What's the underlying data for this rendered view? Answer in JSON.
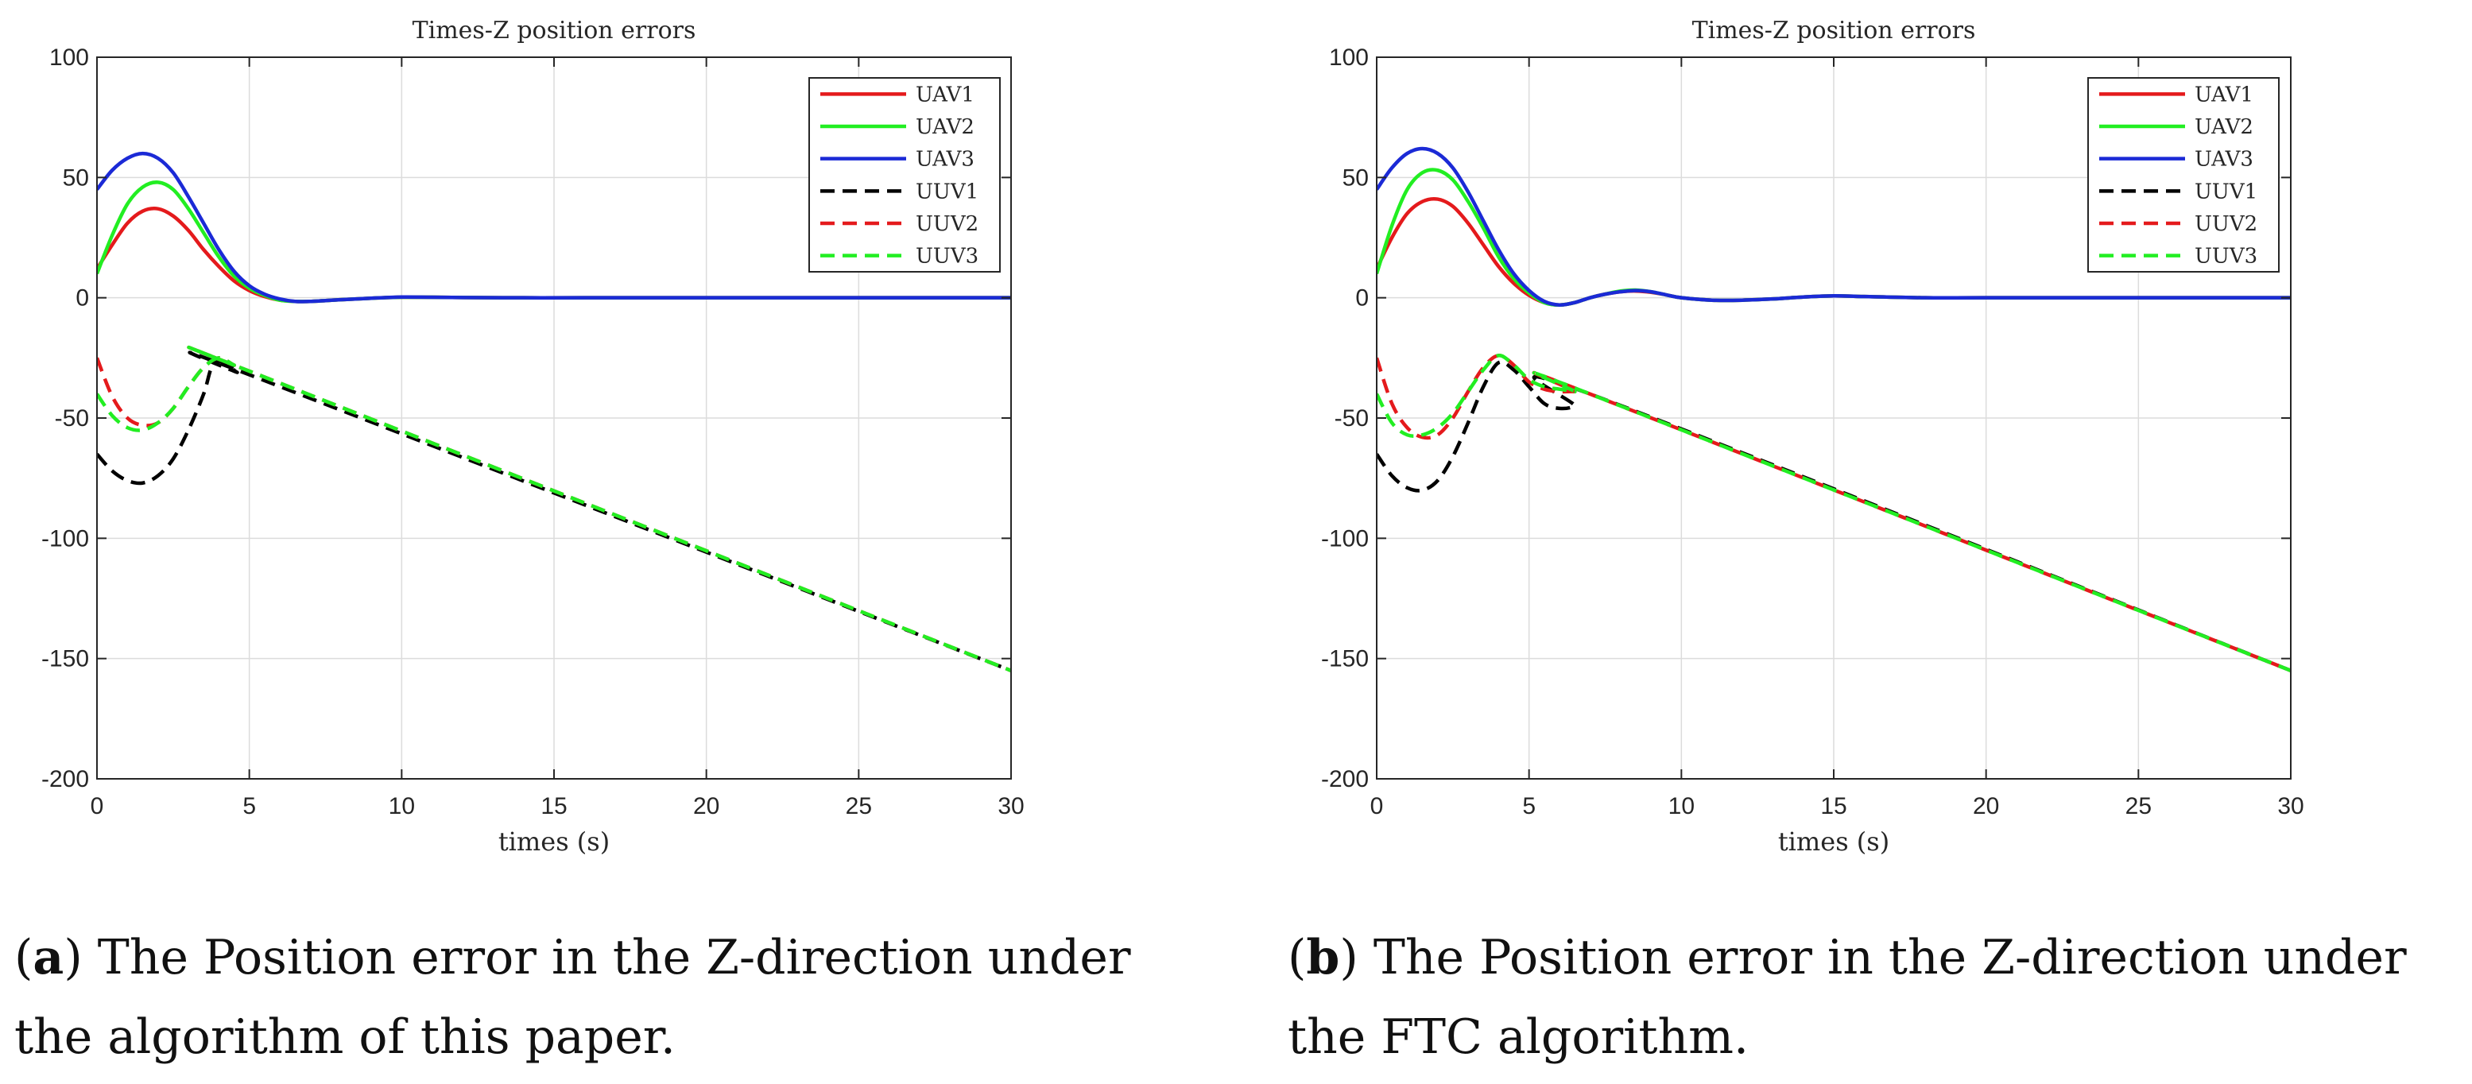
{
  "chart_data": [
    {
      "type": "line",
      "title": "Times-Z position errors",
      "xlabel": "times (s)",
      "ylabel": "",
      "xlim": [
        0,
        30
      ],
      "ylim": [
        -200,
        100
      ],
      "xticks": [
        0,
        5,
        10,
        15,
        20,
        25,
        30
      ],
      "yticks": [
        100,
        50,
        0,
        -50,
        -100,
        -150,
        -200
      ],
      "grid": true,
      "legend_position": "top-right",
      "caption": {
        "letter": "a",
        "line1": ") The Position error in the Z-direction under",
        "line2": "the algorithm of this paper."
      },
      "series": [
        {
          "name": "UAV1",
          "color": "#e41a1c",
          "style": "solid",
          "x": [
            0,
            0.5,
            1,
            1.5,
            2,
            2.5,
            3,
            3.5,
            4,
            4.5,
            5,
            5.5,
            6,
            6.5,
            7,
            8,
            9,
            10,
            11,
            12,
            14,
            16,
            20,
            25,
            30
          ],
          "y": [
            12,
            22,
            31,
            36,
            37,
            34,
            28,
            20,
            13,
            7,
            3,
            0.5,
            -1,
            -1.5,
            -1.5,
            -0.8,
            -0.2,
            0.2,
            0.2,
            0.1,
            0,
            0,
            0,
            0,
            0
          ]
        },
        {
          "name": "UAV2",
          "color": "#22ee22",
          "style": "solid",
          "x": [
            0,
            0.5,
            1,
            1.5,
            2,
            2.5,
            3,
            3.5,
            4,
            4.5,
            5,
            5.5,
            6,
            6.5,
            7,
            8,
            9,
            10,
            11,
            12,
            14,
            16,
            20,
            25,
            30
          ],
          "y": [
            10,
            26,
            39,
            46,
            48,
            45,
            37,
            27,
            17,
            9,
            4,
            1,
            -1,
            -1.5,
            -1.5,
            -0.8,
            -0.2,
            0.2,
            0.2,
            0.1,
            0,
            0,
            0,
            0,
            0
          ]
        },
        {
          "name": "UAV3",
          "color": "#1b2ad6",
          "style": "solid",
          "x": [
            0,
            0.5,
            1,
            1.5,
            2,
            2.5,
            3,
            3.5,
            4,
            4.5,
            5,
            5.5,
            6,
            6.5,
            7,
            8,
            9,
            10,
            11,
            12,
            14,
            16,
            20,
            25,
            30
          ],
          "y": [
            45,
            53,
            58,
            60,
            58,
            52,
            42,
            31,
            20,
            11,
            5,
            1.5,
            -0.5,
            -1.5,
            -1.5,
            -0.8,
            -0.2,
            0.3,
            0.2,
            0.1,
            0,
            0,
            0,
            0,
            0
          ]
        },
        {
          "name": "UUV1",
          "color": "#000000",
          "style": "dashed",
          "x": [
            0,
            0.5,
            1,
            1.5,
            2,
            2.5,
            3,
            3.5,
            3.8,
            4.2,
            4.6,
            5,
            30
          ],
          "y": [
            -65,
            -72,
            -76,
            -77,
            -74,
            -67,
            -55,
            -40,
            -28,
            -27,
            -31,
            -32,
            -155
          ]
        },
        {
          "name": "UUV2",
          "color": "#e41a1c",
          "style": "dashed",
          "x": [
            0,
            0.5,
            1,
            1.5,
            2,
            2.5,
            3,
            3.5,
            4,
            4.5,
            5,
            30
          ],
          "y": [
            -25,
            -41,
            -50,
            -53,
            -52,
            -46,
            -37,
            -29,
            -25,
            -28,
            -30.5,
            -155
          ]
        },
        {
          "name": "UUV3",
          "color": "#22ee22",
          "style": "dashed",
          "x": [
            0,
            0.5,
            1,
            1.5,
            2,
            2.5,
            3,
            3.5,
            4,
            4.5,
            5,
            30
          ],
          "y": [
            -40,
            -49,
            -54,
            -55,
            -52,
            -46,
            -37,
            -29,
            -25,
            -28,
            -30.5,
            -155
          ]
        }
      ]
    },
    {
      "type": "line",
      "title": "Times-Z position errors",
      "xlabel": "times (s)",
      "ylabel": "",
      "xlim": [
        0,
        30
      ],
      "ylim": [
        -200,
        100
      ],
      "xticks": [
        0,
        5,
        10,
        15,
        20,
        25,
        30
      ],
      "yticks": [
        100,
        50,
        0,
        -50,
        -100,
        -150,
        -200
      ],
      "grid": true,
      "legend_position": "top-right",
      "caption": {
        "letter": "b",
        "line1": ") The Position error in the Z-direction under",
        "line2": "the FTC algorithm."
      },
      "series": [
        {
          "name": "UAV1",
          "color": "#e41a1c",
          "style": "solid",
          "x": [
            0,
            0.5,
            1,
            1.5,
            2,
            2.5,
            3,
            3.5,
            4,
            4.5,
            5,
            5.5,
            6,
            6.5,
            7,
            7.5,
            8,
            8.5,
            9,
            9.5,
            10,
            11,
            12,
            13,
            14,
            15,
            16,
            18,
            20,
            25,
            30
          ],
          "y": [
            12,
            25,
            35,
            40,
            41,
            38,
            31,
            22,
            13,
            6,
            1,
            -2,
            -3,
            -2,
            0,
            1.5,
            2.5,
            2.8,
            2.3,
            1.2,
            0,
            -1,
            -1,
            -0.5,
            0.3,
            0.8,
            0.5,
            0,
            0,
            0,
            0
          ]
        },
        {
          "name": "UAV2",
          "color": "#22ee22",
          "style": "solid",
          "x": [
            0,
            0.5,
            1,
            1.5,
            2,
            2.5,
            3,
            3.5,
            4,
            4.5,
            5,
            5.5,
            6,
            6.5,
            7,
            7.5,
            8,
            8.5,
            9,
            9.5,
            10,
            11,
            12,
            13,
            14,
            15,
            16,
            18,
            20,
            25,
            30
          ],
          "y": [
            10,
            30,
            45,
            52,
            53,
            49,
            40,
            29,
            17,
            8,
            2,
            -2,
            -3,
            -2,
            0,
            1.5,
            2.8,
            3.2,
            2.5,
            1.2,
            0,
            -1,
            -1,
            -0.5,
            0.3,
            0.8,
            0.5,
            0,
            0,
            0,
            0
          ]
        },
        {
          "name": "UAV3",
          "color": "#1b2ad6",
          "style": "solid",
          "x": [
            0,
            0.5,
            1,
            1.5,
            2,
            2.5,
            3,
            3.5,
            4,
            4.5,
            5,
            5.5,
            6,
            6.5,
            7,
            7.5,
            8,
            8.5,
            9,
            9.5,
            10,
            11,
            12,
            13,
            14,
            15,
            16,
            18,
            20,
            25,
            30
          ],
          "y": [
            45,
            54,
            60,
            62,
            60,
            54,
            44,
            32,
            20,
            10,
            3,
            -1.5,
            -3,
            -2,
            0,
            1.5,
            2.5,
            3,
            2.5,
            1.2,
            0,
            -1,
            -1,
            -0.5,
            0.3,
            0.8,
            0.5,
            0,
            0,
            0,
            0
          ]
        },
        {
          "name": "UUV1",
          "color": "#000000",
          "style": "dashed",
          "x": [
            0,
            0.5,
            1,
            1.5,
            2,
            2.5,
            3,
            3.5,
            4,
            4.5,
            5,
            5.5,
            6,
            6.5,
            7,
            30
          ],
          "y": [
            -65,
            -74,
            -79,
            -80,
            -76,
            -66,
            -52,
            -37,
            -27,
            -30,
            -37,
            -44,
            -46,
            -45,
            -40,
            -155
          ]
        },
        {
          "name": "UUV2",
          "color": "#e41a1c",
          "style": "dashed",
          "x": [
            0,
            0.5,
            1,
            1.5,
            2,
            2.5,
            3,
            3.5,
            4,
            4.5,
            5,
            5.5,
            6,
            6.5,
            7,
            30
          ],
          "y": [
            -25,
            -44,
            -54,
            -58,
            -57,
            -50,
            -39,
            -29,
            -24,
            -28,
            -35,
            -38,
            -39,
            -39,
            -40,
            -155
          ]
        },
        {
          "name": "UUV3",
          "color": "#22ee22",
          "style": "dashed",
          "x": [
            0,
            0.5,
            1,
            1.5,
            2,
            2.5,
            3,
            3.5,
            4,
            4.5,
            5,
            5.5,
            6,
            6.5,
            7,
            30
          ],
          "y": [
            -40,
            -52,
            -57,
            -57,
            -54,
            -48,
            -39,
            -30,
            -24,
            -28,
            -34,
            -37,
            -38,
            -39,
            -40,
            -155
          ]
        }
      ]
    }
  ]
}
